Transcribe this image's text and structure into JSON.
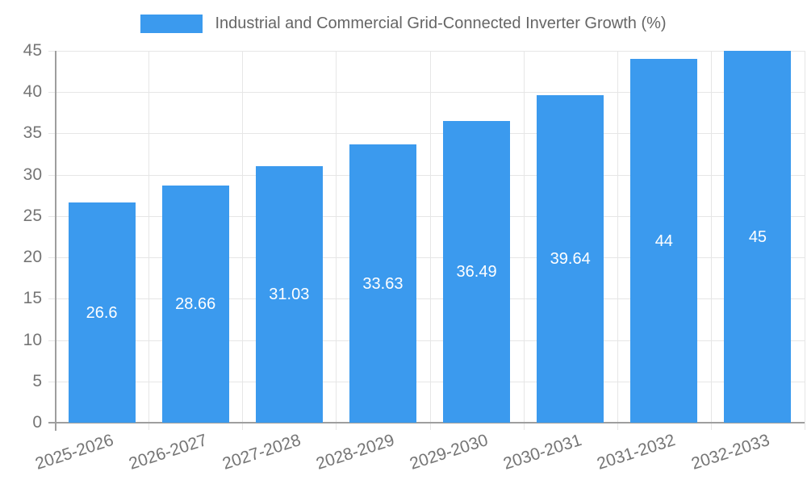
{
  "chart_data": {
    "type": "bar",
    "legend_label": "Industrial and Commercial Grid-Connected Inverter Growth (%)",
    "legend_position": "top",
    "categories": [
      "2025-2026",
      "2026-2027",
      "2027-2028",
      "2028-2029",
      "2029-2030",
      "2030-2031",
      "2031-2032",
      "2032-2033"
    ],
    "values": [
      26.6,
      28.66,
      31.03,
      33.63,
      36.49,
      39.64,
      44,
      45
    ],
    "value_labels": [
      "26.6",
      "28.66",
      "31.03",
      "33.63",
      "36.49",
      "39.64",
      "44",
      "45"
    ],
    "xlabel": "",
    "ylabel": "",
    "ylim": [
      0,
      45
    ],
    "yticks": [
      0,
      5,
      10,
      15,
      20,
      25,
      30,
      35,
      40,
      45
    ],
    "grid": "on",
    "colors": {
      "bar": "#3B9AEE",
      "grid": "#E6E6E6",
      "axis": "#9E9E9E",
      "tick_text": "#757575",
      "legend_text": "#666666",
      "bar_label": "#FFFFFF",
      "background": "#FFFFFF"
    }
  }
}
